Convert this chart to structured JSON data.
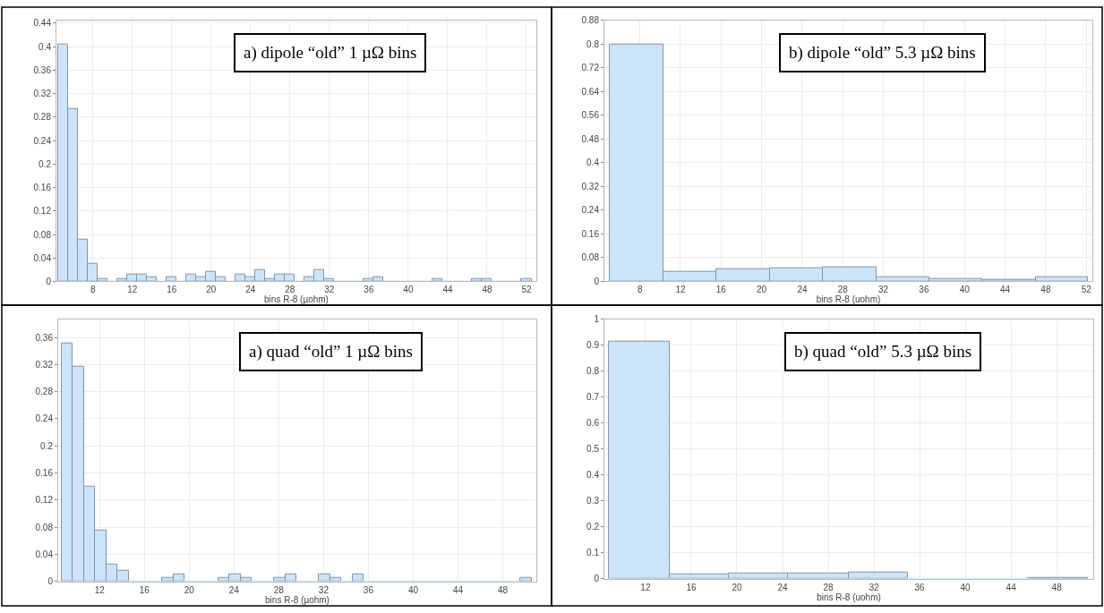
{
  "chart_data": [
    {
      "type": "histogram",
      "xlabel": "bins R-8 (µohm)",
      "annotations": [
        "a) dipole “old” 1 µΩ bins"
      ],
      "color": "#cce4fa",
      "grid": true,
      "bins": [
        4.5,
        5.5,
        6.5,
        7.5,
        8.5,
        9.5,
        10.5,
        11.5,
        12.5,
        13.5,
        14.5,
        15.5,
        16.5,
        17.5,
        18.5,
        19.5,
        20.5,
        21.5,
        22.5,
        23.5,
        24.5,
        25.5,
        26.5,
        27.5,
        28.5,
        29.5,
        30.5,
        31.5,
        32.5,
        33.5,
        34.5,
        35.5,
        36.5,
        37.5,
        38.5,
        39.5,
        40.5,
        41.5,
        42.5,
        43.5,
        44.5,
        45.5,
        46.5,
        47.5,
        48.5,
        49.5,
        50.5,
        51.5,
        52.5
      ],
      "values": [
        0.404,
        0.294,
        0.071,
        0.03,
        0.004,
        0,
        0.004,
        0.012,
        0.012,
        0.008,
        0,
        0.008,
        0,
        0.012,
        0.008,
        0.016,
        0.008,
        0,
        0.012,
        0.008,
        0.02,
        0.004,
        0.012,
        0.012,
        0,
        0.008,
        0.02,
        0.004,
        0,
        0,
        0,
        0.004,
        0.008,
        0,
        0,
        0,
        0,
        0,
        0.004,
        0,
        0,
        0,
        0.004,
        0.004,
        0,
        0,
        0,
        0.004
      ],
      "xlim": [
        4.3,
        53
      ],
      "xticks": [
        8,
        12,
        16,
        20,
        24,
        28,
        32,
        36,
        40,
        44,
        48,
        52
      ],
      "ylim": [
        0,
        0.445
      ],
      "yticks": [
        0,
        0.04,
        0.08,
        0.12,
        0.16,
        0.2,
        0.24,
        0.28,
        0.32,
        0.36,
        0.4,
        0.44
      ]
    },
    {
      "type": "histogram",
      "xlabel": "bins R-8 (uohm)",
      "annotations": [
        "b) dipole “old” 5.3 µΩ bins"
      ],
      "color": "#cce4fa",
      "grid": true,
      "bins": [
        5,
        10.3,
        15.5,
        20.8,
        26,
        31.3,
        36.5,
        41.7,
        47,
        52.2
      ],
      "values": [
        0.8,
        0.034,
        0.042,
        0.044,
        0.049,
        0.013,
        0.009,
        0.005,
        0.013
      ],
      "xlim": [
        4.5,
        52.6
      ],
      "xticks": [
        8,
        12,
        16,
        20,
        24,
        28,
        32,
        36,
        40,
        44,
        48,
        52
      ],
      "ylim": [
        0,
        0.88
      ],
      "yticks": [
        0,
        0.08,
        0.16,
        0.24,
        0.32,
        0.4,
        0.48,
        0.56,
        0.64,
        0.72,
        0.8,
        0.88
      ]
    },
    {
      "type": "histogram",
      "xlabel": "bins R-8 (µohm)",
      "annotations": [
        "a) quad “old” 1 µΩ bins"
      ],
      "color": "#cce4fa",
      "grid": true,
      "bins": [
        8.6,
        9.6,
        10.6,
        11.6,
        12.6,
        13.6,
        14.6,
        15.6,
        16.6,
        17.6,
        18.6,
        19.6,
        20.6,
        21.6,
        22.6,
        23.6,
        24.6,
        25.6,
        26.6,
        27.6,
        28.6,
        29.6,
        30.6,
        31.6,
        32.6,
        33.6,
        34.6,
        35.6,
        36.6,
        37.6,
        38.6,
        39.6,
        40.6,
        41.6,
        42.6,
        43.6,
        44.6,
        45.6,
        46.6,
        47.6,
        48.6,
        49.6,
        50.6
      ],
      "values": [
        0.351,
        0.317,
        0.14,
        0.075,
        0.025,
        0.015,
        0,
        0,
        0,
        0.005,
        0.01,
        0,
        0,
        0,
        0.005,
        0.01,
        0.005,
        0,
        0,
        0.005,
        0.01,
        0,
        0,
        0.01,
        0.005,
        0,
        0.01,
        0,
        0,
        0,
        0,
        0,
        0,
        0,
        0,
        0,
        0,
        0,
        0,
        0,
        0,
        0.005
      ],
      "xlim": [
        8.3,
        51
      ],
      "xticks": [
        12,
        16,
        20,
        24,
        28,
        32,
        36,
        40,
        44,
        48
      ],
      "ylim": [
        0,
        0.387
      ],
      "yticks": [
        0,
        0.04,
        0.08,
        0.12,
        0.16,
        0.2,
        0.24,
        0.28,
        0.32,
        0.36
      ]
    },
    {
      "type": "histogram",
      "xlabel": "bins R-8 (uohm)",
      "annotations": [
        "b) quad “old” 5.3 µΩ bins"
      ],
      "color": "#cce4fa",
      "grid": true,
      "bins": [
        8.8,
        14.1,
        19.3,
        24.5,
        29.8,
        35,
        40.3,
        45.5,
        50.7
      ],
      "values": [
        0.913,
        0.016,
        0.021,
        0.021,
        0.025,
        0,
        0,
        0.004
      ],
      "xlim": [
        8.4,
        51.2
      ],
      "xticks": [
        12,
        16,
        20,
        24,
        28,
        32,
        36,
        40,
        44,
        48
      ],
      "ylim": [
        0,
        1
      ],
      "yticks": [
        0,
        0.1,
        0.2,
        0.3,
        0.4,
        0.5,
        0.6,
        0.7,
        0.8,
        0.9,
        1
      ]
    }
  ]
}
